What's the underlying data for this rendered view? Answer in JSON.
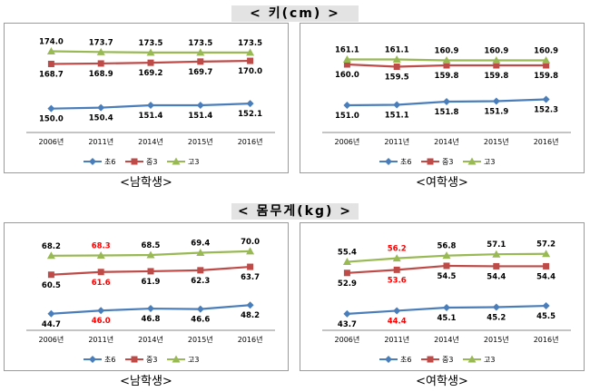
{
  "sections": [
    {
      "title": "<  키(cm)  >"
    },
    {
      "title": "<  몸무게(kg)  >"
    }
  ],
  "chart_data": [
    {
      "type": "line",
      "section": 0,
      "group_label": "<남학생>",
      "categories": [
        "2006년",
        "2011년",
        "2014년",
        "2015년",
        "2016년"
      ],
      "ylim": [
        140,
        178
      ],
      "series": [
        {
          "name": "초6",
          "color": "#4a7ebb",
          "marker": "diamond",
          "values": [
            150.0,
            150.4,
            151.4,
            151.4,
            152.1
          ],
          "labels": [
            "150.0",
            "150.4",
            "151.4",
            "151.4",
            "152.1"
          ],
          "label_colors": [
            "#000000",
            "#000000",
            "#000000",
            "#000000",
            "#000000"
          ],
          "label_pos": "below"
        },
        {
          "name": "중3",
          "color": "#be4b48",
          "marker": "square",
          "values": [
            168.7,
            168.9,
            169.2,
            169.7,
            170.0
          ],
          "labels": [
            "168.7",
            "168.9",
            "169.2",
            "169.7",
            "170.0"
          ],
          "label_colors": [
            "#000000",
            "#000000",
            "#000000",
            "#000000",
            "#000000"
          ],
          "label_pos": "below"
        },
        {
          "name": "고3",
          "color": "#98b954",
          "marker": "triangle",
          "values": [
            174.0,
            173.7,
            173.5,
            173.5,
            173.5
          ],
          "labels": [
            "174.0",
            "173.7",
            "173.5",
            "173.5",
            "173.5"
          ],
          "label_colors": [
            "#000000",
            "#000000",
            "#000000",
            "#000000",
            "#000000"
          ],
          "label_pos": "above"
        }
      ]
    },
    {
      "type": "line",
      "section": 0,
      "group_label": "<여학생>",
      "categories": [
        "2006년",
        "2011년",
        "2014년",
        "2015년",
        "2016년"
      ],
      "ylim": [
        145,
        165
      ],
      "series": [
        {
          "name": "초6",
          "color": "#4a7ebb",
          "marker": "diamond",
          "values": [
            151.0,
            151.1,
            151.8,
            151.9,
            152.3
          ],
          "labels": [
            "151.0",
            "151.1",
            "151.8",
            "151.9",
            "152.3"
          ],
          "label_colors": [
            "#000000",
            "#000000",
            "#000000",
            "#000000",
            "#000000"
          ],
          "label_pos": "below"
        },
        {
          "name": "중3",
          "color": "#be4b48",
          "marker": "square",
          "values": [
            160.0,
            159.5,
            159.8,
            159.8,
            159.8
          ],
          "labels": [
            "160.0",
            "159.5",
            "159.8",
            "159.8",
            "159.8"
          ],
          "label_colors": [
            "#000000",
            "#000000",
            "#000000",
            "#000000",
            "#000000"
          ],
          "label_pos": "below"
        },
        {
          "name": "고3",
          "color": "#98b954",
          "marker": "triangle",
          "values": [
            161.1,
            161.1,
            160.9,
            160.9,
            160.9
          ],
          "labels": [
            "161.1",
            "161.1",
            "160.9",
            "160.9",
            "160.9"
          ],
          "label_colors": [
            "#000000",
            "#000000",
            "#000000",
            "#000000",
            "#000000"
          ],
          "label_pos": "above"
        }
      ]
    },
    {
      "type": "line",
      "section": 1,
      "group_label": "<남학생>",
      "categories": [
        "2006년",
        "2011년",
        "2014년",
        "2015년",
        "2016년"
      ],
      "ylim": [
        38,
        74
      ],
      "series": [
        {
          "name": "초6",
          "color": "#4a7ebb",
          "marker": "diamond",
          "values": [
            44.7,
            46.0,
            46.8,
            46.6,
            48.2
          ],
          "labels": [
            "44.7",
            "46.0",
            "46.8",
            "46.6",
            "48.2"
          ],
          "label_colors": [
            "#000000",
            "#ff0000",
            "#000000",
            "#000000",
            "#000000"
          ],
          "label_pos": "below"
        },
        {
          "name": "중3",
          "color": "#be4b48",
          "marker": "square",
          "values": [
            60.5,
            61.6,
            61.9,
            62.3,
            63.7
          ],
          "labels": [
            "60.5",
            "61.6",
            "61.9",
            "62.3",
            "63.7"
          ],
          "label_colors": [
            "#000000",
            "#ff0000",
            "#000000",
            "#000000",
            "#000000"
          ],
          "label_pos": "below"
        },
        {
          "name": "고3",
          "color": "#98b954",
          "marker": "triangle",
          "values": [
            68.2,
            68.3,
            68.5,
            69.4,
            70.0
          ],
          "labels": [
            "68.2",
            "68.3",
            "68.5",
            "69.4",
            "70.0"
          ],
          "label_colors": [
            "#000000",
            "#ff0000",
            "#000000",
            "#000000",
            "#000000"
          ],
          "label_pos": "above"
        }
      ]
    },
    {
      "type": "line",
      "section": 1,
      "group_label": "<여학생>",
      "categories": [
        "2006년",
        "2011년",
        "2014년",
        "2015년",
        "2016년"
      ],
      "ylim": [
        40,
        60
      ],
      "series": [
        {
          "name": "초6",
          "color": "#4a7ebb",
          "marker": "diamond",
          "values": [
            43.7,
            44.4,
            45.1,
            45.2,
            45.5
          ],
          "labels": [
            "43.7",
            "44.4",
            "45.1",
            "45.2",
            "45.5"
          ],
          "label_colors": [
            "#000000",
            "#ff0000",
            "#000000",
            "#000000",
            "#000000"
          ],
          "label_pos": "below"
        },
        {
          "name": "중3",
          "color": "#be4b48",
          "marker": "square",
          "values": [
            52.9,
            53.6,
            54.5,
            54.4,
            54.4
          ],
          "labels": [
            "52.9",
            "53.6",
            "54.5",
            "54.4",
            "54.4"
          ],
          "label_colors": [
            "#000000",
            "#ff0000",
            "#000000",
            "#000000",
            "#000000"
          ],
          "label_pos": "below"
        },
        {
          "name": "고3",
          "color": "#98b954",
          "marker": "triangle",
          "values": [
            55.4,
            56.2,
            56.8,
            57.1,
            57.2
          ],
          "labels": [
            "55.4",
            "56.2",
            "56.8",
            "57.1",
            "57.2"
          ],
          "label_colors": [
            "#000000",
            "#ff0000",
            "#000000",
            "#000000",
            "#000000"
          ],
          "label_pos": "above"
        }
      ]
    }
  ]
}
